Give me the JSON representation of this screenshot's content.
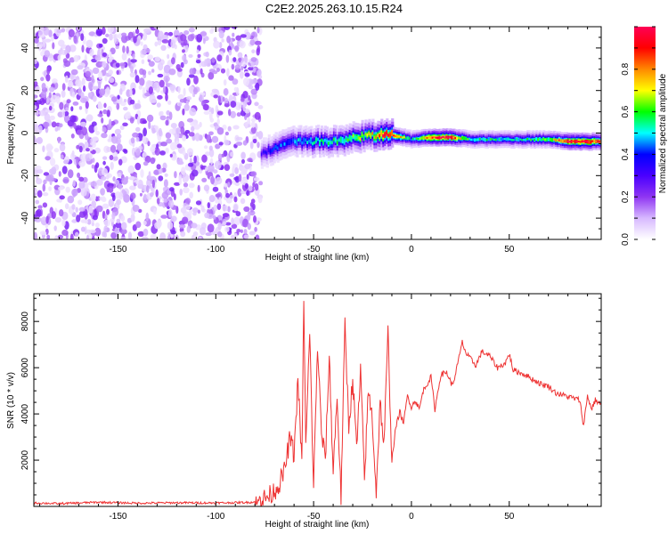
{
  "title": "C2E2.2025.263.10.15.R24",
  "chart_data": [
    {
      "type": "heatmap",
      "xlabel": "Height of straight line (km)",
      "ylabel": "Frequency (Hz)",
      "xlim": [
        -193,
        97
      ],
      "ylim": [
        -50,
        50
      ],
      "x_ticks": [
        -150,
        -100,
        -50,
        0,
        50
      ],
      "y_ticks": [
        -40,
        -20,
        0,
        20,
        40
      ],
      "colorbar": {
        "label": "Normalized spectral amplitude",
        "range": [
          0,
          1
        ],
        "ticks": [
          0.0,
          0.2,
          0.4,
          0.6,
          0.8
        ],
        "colors": [
          "#ffffff",
          "#d7b8ff",
          "#8f35f2",
          "#4a00ff",
          "#0000ff",
          "#00ffff",
          "#00ff00",
          "#ffff00",
          "#ff8800",
          "#ff0000",
          "#ff0055"
        ]
      },
      "noise_region": {
        "x_range": [
          -193,
          -77
        ],
        "amplitude_range": [
          0.0,
          0.2
        ]
      },
      "ridge": {
        "description": "",
        "x": [
          -77,
          -70,
          -60,
          -50,
          -40,
          -30,
          -20,
          -15,
          -10,
          0,
          10,
          20,
          30,
          40,
          50,
          60,
          70,
          80,
          90,
          97
        ],
        "frequency": [
          -10,
          -7,
          -4,
          -4,
          -4,
          -2,
          -1,
          -1,
          -1,
          -3,
          -2,
          -2,
          -3,
          -3,
          -3,
          -3,
          -3,
          -4,
          -4,
          -4
        ],
        "peak_amplitude": [
          0.3,
          0.4,
          0.45,
          0.5,
          0.55,
          0.6,
          0.7,
          0.9,
          0.85,
          0.5,
          0.9,
          0.95,
          0.5,
          0.55,
          0.5,
          0.55,
          0.6,
          0.95,
          0.95,
          0.8
        ]
      }
    },
    {
      "type": "line",
      "xlabel": "Height of straight line (km)",
      "ylabel": "SNR (10 * v/v)",
      "xlim": [
        -193,
        97
      ],
      "ylim": [
        0,
        9200
      ],
      "x_ticks": [
        -150,
        -100,
        -50,
        0,
        50
      ],
      "y_ticks": [
        2000,
        4000,
        6000,
        8000
      ],
      "line_color": "#ee3333",
      "x": [
        -193,
        -180,
        -160,
        -140,
        -120,
        -100,
        -85,
        -78,
        -72,
        -68,
        -65,
        -62,
        -60,
        -58,
        -56,
        -55,
        -54,
        -52,
        -50,
        -48,
        -46,
        -44,
        -42,
        -40,
        -38,
        -36,
        -34,
        -32,
        -30,
        -28,
        -26,
        -24,
        -22,
        -20,
        -18,
        -16,
        -14,
        -12,
        -10,
        -8,
        -6,
        -4,
        -2,
        0,
        2,
        4,
        6,
        8,
        10,
        12,
        15,
        18,
        21,
        24,
        26,
        28,
        30,
        33,
        36,
        40,
        44,
        48,
        50,
        52,
        55,
        58,
        62,
        66,
        70,
        74,
        78,
        82,
        86,
        88,
        90,
        92,
        94,
        97
      ],
      "y": [
        150,
        120,
        180,
        140,
        160,
        150,
        170,
        200,
        500,
        900,
        1500,
        3000,
        2200,
        5500,
        1800,
        9100,
        2500,
        7500,
        800,
        7000,
        3200,
        2000,
        6500,
        1500,
        4800,
        400,
        7800,
        3500,
        5500,
        2500,
        5800,
        1200,
        5000,
        3800,
        600,
        4500,
        2600,
        7500,
        2000,
        3400,
        4100,
        3600,
        4800,
        4300,
        4600,
        4200,
        5000,
        5300,
        5600,
        4200,
        5700,
        5800,
        5200,
        6300,
        7100,
        6600,
        6400,
        6100,
        6700,
        6500,
        6000,
        6200,
        6600,
        5900,
        5800,
        5700,
        5500,
        5300,
        5200,
        4900,
        4800,
        4700,
        4600,
        3500,
        4800,
        4200,
        4600,
        4400
      ]
    }
  ]
}
